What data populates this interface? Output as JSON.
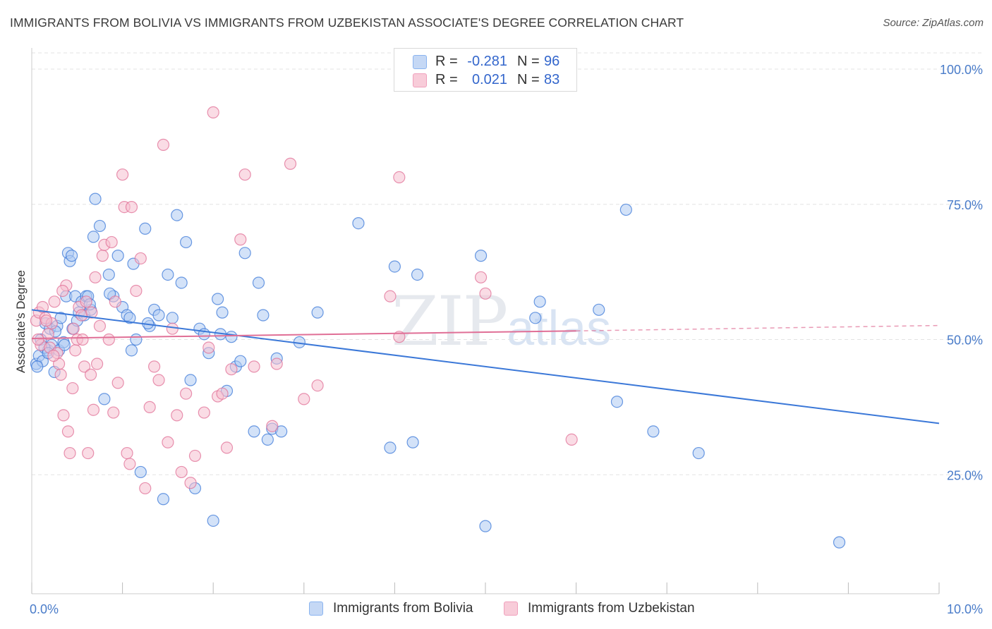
{
  "title": "IMMIGRANTS FROM BOLIVIA VS IMMIGRANTS FROM UZBEKISTAN ASSOCIATE'S DEGREE CORRELATION CHART",
  "source": "Source: ZipAtlas.com",
  "watermark": {
    "zip": "ZIP",
    "atlas": "atlas"
  },
  "legend": {
    "rows": [
      {
        "r_label": "R =",
        "r_value": "-0.281",
        "n_label": "N =",
        "n_value": "96",
        "color": "#8ab4f0",
        "fill": "#c5d8f5"
      },
      {
        "r_label": "R =",
        "r_value": "0.021",
        "n_label": "N =",
        "n_value": "83",
        "color": "#f0a0bc",
        "fill": "#f8ccd9"
      }
    ]
  },
  "chart_data": {
    "type": "scatter",
    "title": "IMMIGRANTS FROM BOLIVIA VS IMMIGRANTS FROM UZBEKISTAN ASSOCIATE'S DEGREE CORRELATION CHART",
    "xlabel": "",
    "ylabel": "Associate's Degree",
    "xlim": [
      0,
      10
    ],
    "ylim": [
      3,
      103
    ],
    "x_tick_labels": [
      "0.0%",
      "10.0%"
    ],
    "y_ticks": [
      25,
      50,
      75,
      100
    ],
    "y_tick_labels": [
      "25.0%",
      "50.0%",
      "75.0%",
      "100.0%"
    ],
    "grid": true,
    "legend_position": "bottom",
    "series": [
      {
        "name": "Immigrants from Bolivia",
        "color": "#3b78d8",
        "fill": "#aecbf2",
        "trend": {
          "x": [
            0.0,
            10.0
          ],
          "y": [
            55.5,
            34.5
          ],
          "dashed_from": null
        },
        "points": [
          [
            0.05,
            45.5
          ],
          [
            0.08,
            47
          ],
          [
            0.1,
            50
          ],
          [
            0.12,
            46
          ],
          [
            0.15,
            53
          ],
          [
            0.18,
            48
          ],
          [
            0.2,
            52
          ],
          [
            0.22,
            49
          ],
          [
            0.25,
            44
          ],
          [
            0.28,
            52.5
          ],
          [
            0.3,
            48
          ],
          [
            0.32,
            54
          ],
          [
            0.35,
            49.5
          ],
          [
            0.38,
            58
          ],
          [
            0.4,
            66
          ],
          [
            0.42,
            64.5
          ],
          [
            0.45,
            52
          ],
          [
            0.48,
            58
          ],
          [
            0.5,
            53.5
          ],
          [
            0.52,
            55
          ],
          [
            0.55,
            57
          ],
          [
            0.58,
            54.5
          ],
          [
            0.6,
            58
          ],
          [
            0.62,
            58
          ],
          [
            0.65,
            55.5
          ],
          [
            0.68,
            69
          ],
          [
            0.7,
            76
          ],
          [
            0.75,
            71
          ],
          [
            0.8,
            39
          ],
          [
            0.85,
            62
          ],
          [
            0.9,
            58
          ],
          [
            0.95,
            65.5
          ],
          [
            1.0,
            56
          ],
          [
            1.05,
            54.5
          ],
          [
            1.1,
            48
          ],
          [
            1.12,
            64
          ],
          [
            1.15,
            50
          ],
          [
            1.2,
            25.5
          ],
          [
            1.25,
            70.5
          ],
          [
            1.3,
            52.5
          ],
          [
            1.35,
            55.5
          ],
          [
            1.4,
            54.5
          ],
          [
            1.45,
            20.5
          ],
          [
            1.5,
            62
          ],
          [
            1.55,
            54
          ],
          [
            1.6,
            73
          ],
          [
            1.65,
            60.5
          ],
          [
            1.7,
            68
          ],
          [
            1.75,
            42.5
          ],
          [
            1.8,
            22.5
          ],
          [
            1.85,
            52
          ],
          [
            1.9,
            51
          ],
          [
            1.95,
            47.5
          ],
          [
            2.0,
            16.5
          ],
          [
            2.05,
            57.5
          ],
          [
            2.1,
            55
          ],
          [
            2.15,
            40.5
          ],
          [
            2.2,
            50.5
          ],
          [
            2.25,
            45
          ],
          [
            2.3,
            46
          ],
          [
            2.35,
            66
          ],
          [
            2.45,
            33
          ],
          [
            2.5,
            60.5
          ],
          [
            2.55,
            54.5
          ],
          [
            2.6,
            31.5
          ],
          [
            2.65,
            33.5
          ],
          [
            2.7,
            46.5
          ],
          [
            2.75,
            33
          ],
          [
            2.95,
            49.5
          ],
          [
            3.15,
            55
          ],
          [
            3.6,
            71.5
          ],
          [
            3.95,
            30
          ],
          [
            4.0,
            63.5
          ],
          [
            4.2,
            31
          ],
          [
            4.25,
            62
          ],
          [
            4.95,
            65.5
          ],
          [
            5.0,
            15.5
          ],
          [
            5.55,
            54
          ],
          [
            5.6,
            57
          ],
          [
            6.25,
            55.5
          ],
          [
            6.45,
            38.5
          ],
          [
            6.55,
            74
          ],
          [
            6.85,
            33
          ],
          [
            7.35,
            29
          ],
          [
            8.9,
            12.5
          ],
          [
            0.06,
            45
          ],
          [
            0.14,
            48.5
          ],
          [
            0.18,
            47.5
          ],
          [
            0.26,
            51.5
          ],
          [
            0.36,
            49
          ],
          [
            0.44,
            65.5
          ],
          [
            0.64,
            56.5
          ],
          [
            0.86,
            58.5
          ],
          [
            1.08,
            54
          ],
          [
            1.28,
            53
          ],
          [
            2.08,
            51
          ]
        ]
      },
      {
        "name": "Immigrants from Uzbekistan",
        "color": "#e06f96",
        "fill": "#f5bfd0",
        "trend": {
          "x": [
            0.0,
            6.0
          ],
          "y": [
            50.2,
            51.6
          ],
          "dashed_from": 6.0,
          "dashed_to": [
            10.0,
            52.6
          ]
        },
        "points": [
          [
            0.05,
            53.5
          ],
          [
            0.08,
            55
          ],
          [
            0.1,
            49
          ],
          [
            0.12,
            56
          ],
          [
            0.15,
            54
          ],
          [
            0.18,
            51
          ],
          [
            0.2,
            48.5
          ],
          [
            0.22,
            53
          ],
          [
            0.25,
            57
          ],
          [
            0.28,
            47.5
          ],
          [
            0.3,
            45.5
          ],
          [
            0.32,
            43.5
          ],
          [
            0.35,
            36
          ],
          [
            0.38,
            60
          ],
          [
            0.4,
            33
          ],
          [
            0.42,
            29
          ],
          [
            0.45,
            41
          ],
          [
            0.48,
            48
          ],
          [
            0.5,
            50
          ],
          [
            0.52,
            56
          ],
          [
            0.55,
            54.5
          ],
          [
            0.58,
            45
          ],
          [
            0.6,
            57
          ],
          [
            0.62,
            29
          ],
          [
            0.65,
            43.5
          ],
          [
            0.68,
            37
          ],
          [
            0.7,
            61.5
          ],
          [
            0.72,
            45.5
          ],
          [
            0.75,
            52.5
          ],
          [
            0.78,
            65.5
          ],
          [
            0.8,
            67.5
          ],
          [
            0.85,
            50
          ],
          [
            0.9,
            36.5
          ],
          [
            0.92,
            57
          ],
          [
            0.95,
            42
          ],
          [
            1.0,
            80.5
          ],
          [
            1.02,
            74.5
          ],
          [
            1.05,
            29
          ],
          [
            1.08,
            27
          ],
          [
            1.1,
            74.5
          ],
          [
            1.15,
            59
          ],
          [
            1.2,
            65
          ],
          [
            1.25,
            22.5
          ],
          [
            1.3,
            37.5
          ],
          [
            1.35,
            45
          ],
          [
            1.4,
            42.5
          ],
          [
            1.45,
            86
          ],
          [
            1.5,
            31
          ],
          [
            1.55,
            52
          ],
          [
            1.6,
            36
          ],
          [
            1.65,
            25.5
          ],
          [
            1.7,
            40
          ],
          [
            1.75,
            23.5
          ],
          [
            1.8,
            28.5
          ],
          [
            1.9,
            36.5
          ],
          [
            1.95,
            48.5
          ],
          [
            2.0,
            92
          ],
          [
            2.05,
            39.5
          ],
          [
            2.1,
            40
          ],
          [
            2.15,
            30
          ],
          [
            2.2,
            44.5
          ],
          [
            2.3,
            68.5
          ],
          [
            2.35,
            80.5
          ],
          [
            2.45,
            45
          ],
          [
            2.65,
            34
          ],
          [
            2.7,
            45.5
          ],
          [
            2.85,
            82.5
          ],
          [
            3.0,
            39
          ],
          [
            3.15,
            41.5
          ],
          [
            3.95,
            58
          ],
          [
            4.05,
            50.5
          ],
          [
            4.95,
            61.5
          ],
          [
            5.0,
            58.5
          ],
          [
            5.95,
            31.5
          ],
          [
            4.05,
            80
          ],
          [
            0.07,
            50
          ],
          [
            0.16,
            53.5
          ],
          [
            0.24,
            47
          ],
          [
            0.34,
            59
          ],
          [
            0.46,
            52
          ],
          [
            0.56,
            50
          ],
          [
            0.66,
            55
          ],
          [
            0.88,
            68
          ]
        ]
      }
    ]
  }
}
